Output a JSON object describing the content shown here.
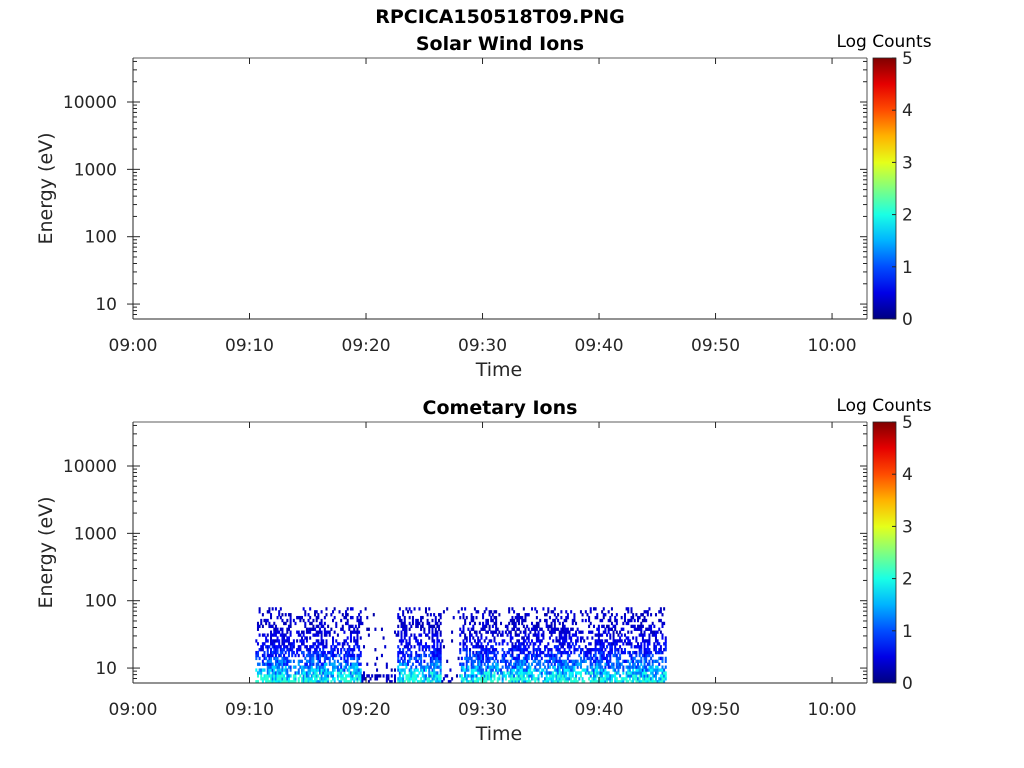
{
  "figure": {
    "title": "RPCICA150518T09.PNG"
  },
  "colors": {
    "axis": "#262626",
    "background": "#ffffff"
  },
  "chart_data": [
    {
      "type": "heatmap",
      "title": "Solar Wind Ions",
      "xlabel": "Time",
      "ylabel": "Energy (eV)",
      "x_ticks": [
        "09:00",
        "09:10",
        "09:20",
        "09:30",
        "09:40",
        "09:50",
        "10:00"
      ],
      "xlim": [
        "09:00",
        "10:03"
      ],
      "y_scale": "log",
      "y_ticks": [
        10,
        100,
        1000,
        10000
      ],
      "y_tick_labels": [
        "10",
        "100",
        "1000",
        "10000"
      ],
      "ylim": [
        6,
        45000
      ],
      "colorbar": {
        "label": "Log Counts",
        "range": [
          0,
          5
        ],
        "ticks": [
          "0",
          "1",
          "2",
          "3",
          "4",
          "5"
        ],
        "colormap": "jet"
      },
      "data_extent": null
    },
    {
      "type": "heatmap",
      "title": "Cometary Ions",
      "xlabel": "Time",
      "ylabel": "Energy (eV)",
      "x_ticks": [
        "09:00",
        "09:10",
        "09:20",
        "09:30",
        "09:40",
        "09:50",
        "10:00"
      ],
      "xlim": [
        "09:00",
        "10:03"
      ],
      "y_scale": "log",
      "y_ticks": [
        10,
        100,
        1000,
        10000
      ],
      "y_tick_labels": [
        "10",
        "100",
        "1000",
        "10000"
      ],
      "ylim": [
        6,
        45000
      ],
      "colorbar": {
        "label": "Log Counts",
        "range": [
          0,
          5
        ],
        "ticks": [
          "0",
          "1",
          "2",
          "3",
          "4",
          "5"
        ],
        "colormap": "jet"
      },
      "data_extent": {
        "time": [
          "09:10:30",
          "09:45:40"
        ],
        "energy_ev": [
          6,
          80
        ]
      },
      "data_gaps": [
        [
          "09:19:30",
          "09:22:40"
        ],
        [
          "09:26:20",
          "09:28:00"
        ]
      ],
      "typical_log_counts": {
        "low_energy_peak": 1.7,
        "mid": 0.5,
        "high": 0.1
      }
    }
  ]
}
